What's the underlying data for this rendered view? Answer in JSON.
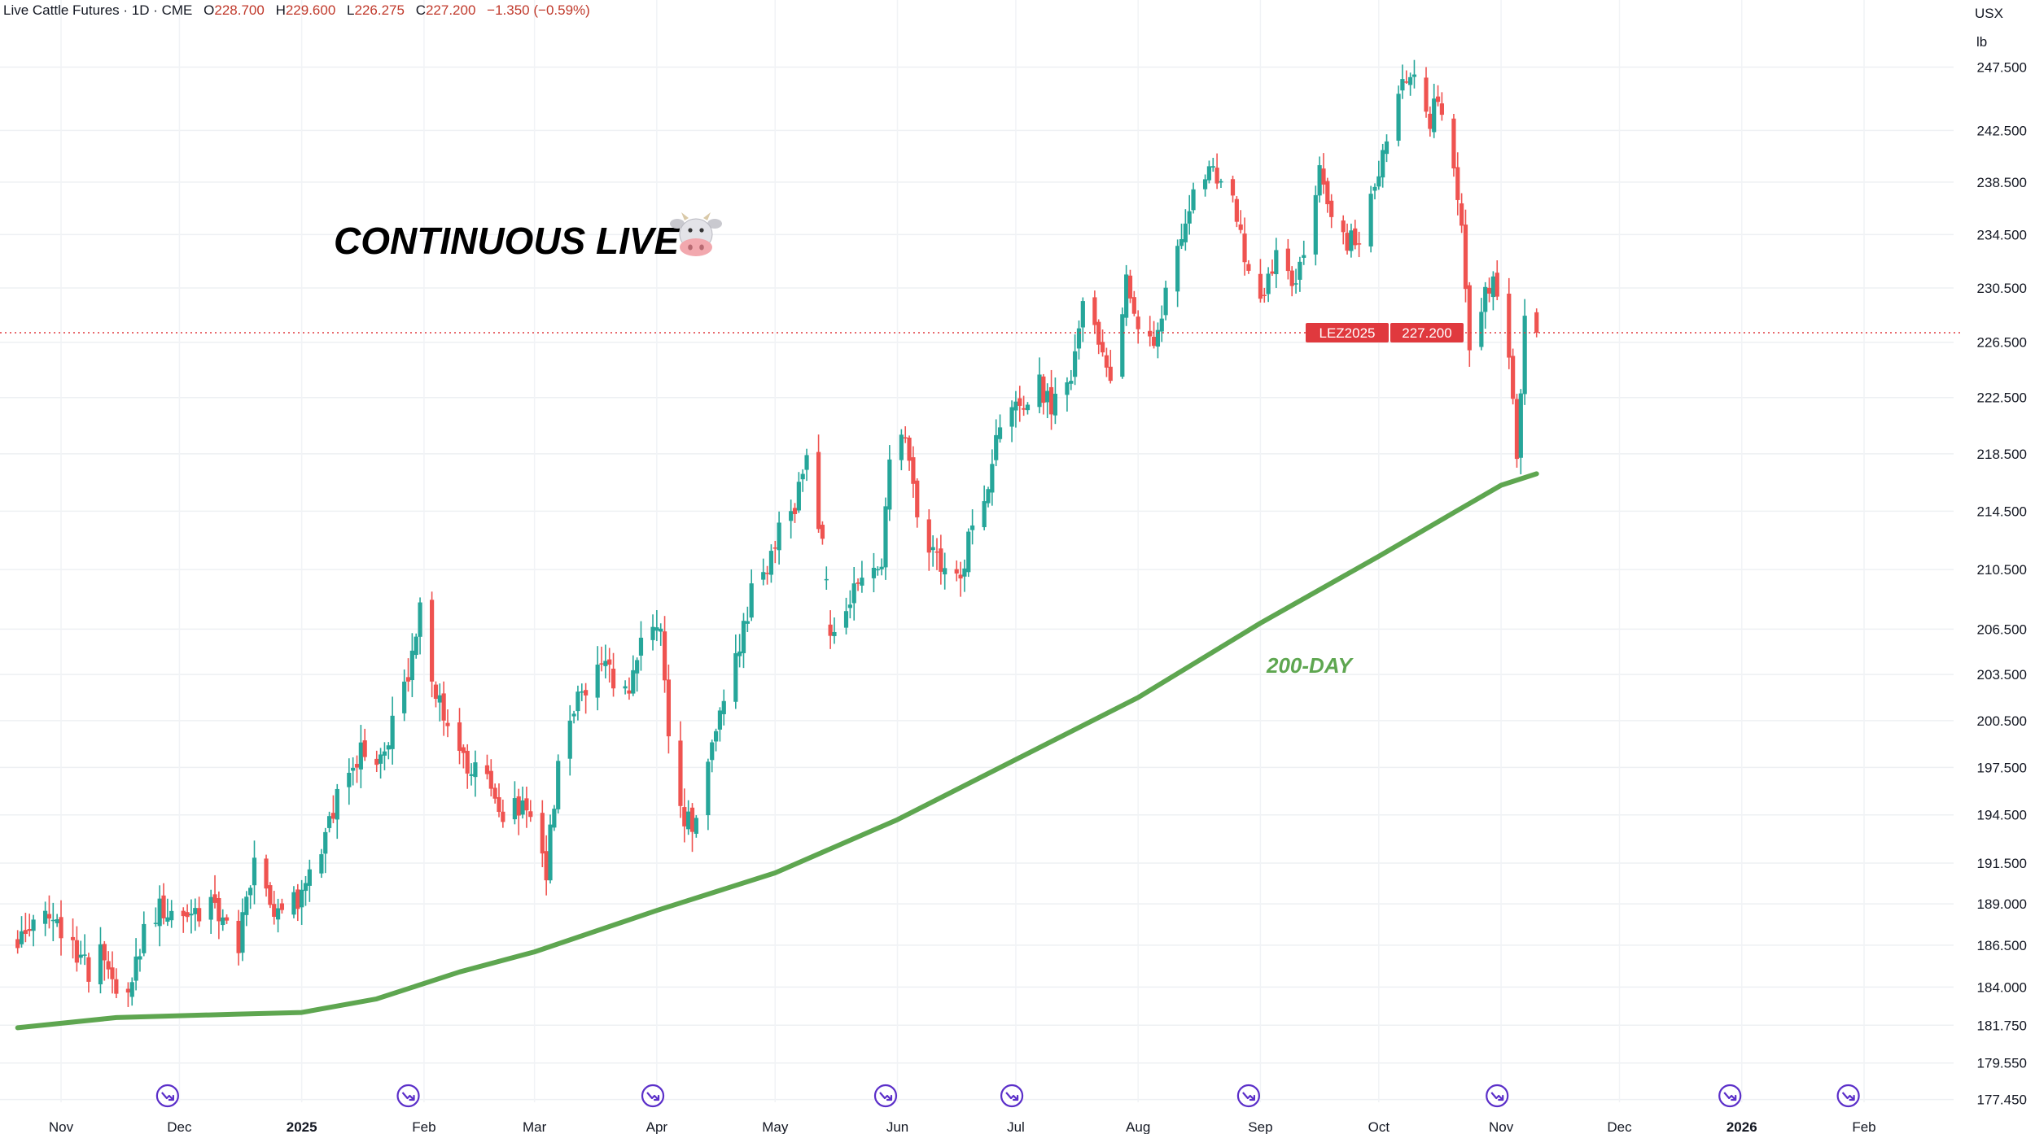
{
  "header": {
    "symbol_line": "Live Cattle Futures · 1D · CME",
    "open_label": "O",
    "open": "228.700",
    "high_label": "H",
    "high": "229.600",
    "low_label": "L",
    "low": "226.275",
    "close_label": "C",
    "close": "227.200",
    "change": "−1.350 (−0.59%)"
  },
  "currency": "USX",
  "unit": "lb",
  "colors": {
    "up": "#26a69a",
    "down": "#ef5350",
    "ma": "#5ea650",
    "price_tag": "#e0393e",
    "event_marker": "#5b2fc9"
  },
  "event_marker_icon": "dividend-event-icon",
  "chart_data": {
    "type": "candlestick",
    "title": "CONTINUOUS LIVE",
    "title_icon": "cow-face-icon",
    "last_price_label": "LEZ2025",
    "last_price": 227.2,
    "ylim": [
      177.2,
      251.0
    ],
    "y_ticks": [
      "177.450",
      "179.550",
      "181.750",
      "184.000",
      "186.500",
      "189.000",
      "191.500",
      "194.500",
      "197.500",
      "200.500",
      "203.500",
      "206.500",
      "210.500",
      "214.500",
      "218.500",
      "222.500",
      "226.500",
      "230.500",
      "234.500",
      "238.500",
      "242.500",
      "247.500"
    ],
    "x_ticks": [
      {
        "label": "Nov",
        "date": "2024-11-01"
      },
      {
        "label": "Dec",
        "date": "2024-12-01"
      },
      {
        "label": "2025",
        "date": "2025-01-01",
        "bold": true
      },
      {
        "label": "Feb",
        "date": "2025-02-01"
      },
      {
        "label": "Mar",
        "date": "2025-03-01"
      },
      {
        "label": "Apr",
        "date": "2025-04-01"
      },
      {
        "label": "May",
        "date": "2025-05-01"
      },
      {
        "label": "Jun",
        "date": "2025-06-01"
      },
      {
        "label": "Jul",
        "date": "2025-07-01"
      },
      {
        "label": "Aug",
        "date": "2025-08-01"
      },
      {
        "label": "Sep",
        "date": "2025-09-01"
      },
      {
        "label": "Oct",
        "date": "2025-10-01"
      },
      {
        "label": "Nov",
        "date": "2025-11-01"
      },
      {
        "label": "Dec",
        "date": "2025-12-01"
      },
      {
        "label": "2026",
        "date": "2026-01-01",
        "bold": true
      },
      {
        "label": "Feb",
        "date": "2026-02-01"
      }
    ],
    "event_dates": [
      "2024-11-28",
      "2025-01-28",
      "2025-03-31",
      "2025-05-29",
      "2025-06-30",
      "2025-08-29",
      "2025-10-31",
      "2025-12-29",
      "2026-01-28"
    ],
    "price_path": [
      {
        "date": "2024-10-21",
        "value": 186.8
      },
      {
        "date": "2024-10-28",
        "value": 189.0
      },
      {
        "date": "2024-11-04",
        "value": 186.3
      },
      {
        "date": "2024-11-08",
        "value": 184.8
      },
      {
        "date": "2024-11-11",
        "value": 185.9
      },
      {
        "date": "2024-11-14",
        "value": 184.0
      },
      {
        "date": "2024-11-18",
        "value": 183.5
      },
      {
        "date": "2024-11-22",
        "value": 187.0
      },
      {
        "date": "2024-11-26",
        "value": 188.9
      },
      {
        "date": "2024-12-03",
        "value": 188.5
      },
      {
        "date": "2024-12-10",
        "value": 188.9
      },
      {
        "date": "2024-12-16",
        "value": 186.5
      },
      {
        "date": "2024-12-20",
        "value": 191.5
      },
      {
        "date": "2024-12-26",
        "value": 188.0
      },
      {
        "date": "2024-12-31",
        "value": 189.3
      },
      {
        "date": "2025-01-03",
        "value": 191.3
      },
      {
        "date": "2025-01-08",
        "value": 193.8
      },
      {
        "date": "2025-01-13",
        "value": 197.8
      },
      {
        "date": "2025-01-17",
        "value": 198.5
      },
      {
        "date": "2025-01-22",
        "value": 198.3
      },
      {
        "date": "2025-01-28",
        "value": 203.5
      },
      {
        "date": "2025-01-31",
        "value": 207.5
      },
      {
        "date": "2025-02-04",
        "value": 202.5
      },
      {
        "date": "2025-02-07",
        "value": 199.5
      },
      {
        "date": "2025-02-12",
        "value": 197.8
      },
      {
        "date": "2025-02-18",
        "value": 196.5
      },
      {
        "date": "2025-02-21",
        "value": 194.5
      },
      {
        "date": "2025-02-25",
        "value": 195.2
      },
      {
        "date": "2025-02-28",
        "value": 193.8
      },
      {
        "date": "2025-03-04",
        "value": 191.0
      },
      {
        "date": "2025-03-07",
        "value": 197.5
      },
      {
        "date": "2025-03-11",
        "value": 201.5
      },
      {
        "date": "2025-03-14",
        "value": 202.5
      },
      {
        "date": "2025-03-18",
        "value": 205.0
      },
      {
        "date": "2025-03-21",
        "value": 203.0
      },
      {
        "date": "2025-03-25",
        "value": 202.3
      },
      {
        "date": "2025-03-28",
        "value": 205.5
      },
      {
        "date": "2025-04-02",
        "value": 207.0
      },
      {
        "date": "2025-04-04",
        "value": 199.0
      },
      {
        "date": "2025-04-08",
        "value": 194.5
      },
      {
        "date": "2025-04-10",
        "value": 193.5
      },
      {
        "date": "2025-04-14",
        "value": 197.5
      },
      {
        "date": "2025-04-17",
        "value": 201.5
      },
      {
        "date": "2025-04-22",
        "value": 205.2
      },
      {
        "date": "2025-04-25",
        "value": 209.0
      },
      {
        "date": "2025-04-29",
        "value": 210.5
      },
      {
        "date": "2025-05-02",
        "value": 213.0
      },
      {
        "date": "2025-05-06",
        "value": 215.0
      },
      {
        "date": "2025-05-09",
        "value": 217.8
      },
      {
        "date": "2025-05-13",
        "value": 212.5
      },
      {
        "date": "2025-05-15",
        "value": 206.5
      },
      {
        "date": "2025-05-19",
        "value": 208.0
      },
      {
        "date": "2025-05-23",
        "value": 210.5
      },
      {
        "date": "2025-05-28",
        "value": 211.0
      },
      {
        "date": "2025-05-30",
        "value": 218.5
      },
      {
        "date": "2025-06-03",
        "value": 219.3
      },
      {
        "date": "2025-06-06",
        "value": 214.5
      },
      {
        "date": "2025-06-10",
        "value": 211.5
      },
      {
        "date": "2025-06-13",
        "value": 210.5
      },
      {
        "date": "2025-06-17",
        "value": 210.0
      },
      {
        "date": "2025-06-20",
        "value": 214.0
      },
      {
        "date": "2025-06-24",
        "value": 216.5
      },
      {
        "date": "2025-06-27",
        "value": 220.3
      },
      {
        "date": "2025-07-01",
        "value": 221.5
      },
      {
        "date": "2025-07-07",
        "value": 223.6
      },
      {
        "date": "2025-07-10",
        "value": 221.5
      },
      {
        "date": "2025-07-15",
        "value": 224.0
      },
      {
        "date": "2025-07-18",
        "value": 229.5
      },
      {
        "date": "2025-07-22",
        "value": 226.5
      },
      {
        "date": "2025-07-25",
        "value": 223.0
      },
      {
        "date": "2025-07-29",
        "value": 231.3
      },
      {
        "date": "2025-08-01",
        "value": 228.0
      },
      {
        "date": "2025-08-05",
        "value": 226.0
      },
      {
        "date": "2025-08-08",
        "value": 230.5
      },
      {
        "date": "2025-08-12",
        "value": 234.5
      },
      {
        "date": "2025-08-15",
        "value": 238.3
      },
      {
        "date": "2025-08-20",
        "value": 239.5
      },
      {
        "date": "2025-08-25",
        "value": 237.5
      },
      {
        "date": "2025-08-28",
        "value": 233.0
      },
      {
        "date": "2025-09-02",
        "value": 229.5
      },
      {
        "date": "2025-09-05",
        "value": 233.5
      },
      {
        "date": "2025-09-09",
        "value": 230.5
      },
      {
        "date": "2025-09-12",
        "value": 232.5
      },
      {
        "date": "2025-09-16",
        "value": 239.5
      },
      {
        "date": "2025-09-19",
        "value": 236.0
      },
      {
        "date": "2025-09-23",
        "value": 234.0
      },
      {
        "date": "2025-09-26",
        "value": 234.5
      },
      {
        "date": "2025-09-30",
        "value": 238.0
      },
      {
        "date": "2025-10-03",
        "value": 241.5
      },
      {
        "date": "2025-10-07",
        "value": 246.0
      },
      {
        "date": "2025-10-10",
        "value": 247.6
      },
      {
        "date": "2025-10-14",
        "value": 243.0
      },
      {
        "date": "2025-10-16",
        "value": 245.5
      },
      {
        "date": "2025-10-20",
        "value": 240.0
      },
      {
        "date": "2025-10-22",
        "value": 234.5
      },
      {
        "date": "2025-10-24",
        "value": 226.5
      },
      {
        "date": "2025-10-28",
        "value": 230.0
      },
      {
        "date": "2025-10-30",
        "value": 231.5
      },
      {
        "date": "2025-11-03",
        "value": 226.0
      },
      {
        "date": "2025-11-05",
        "value": 218.5
      },
      {
        "date": "2025-11-07",
        "value": 228.5
      },
      {
        "date": "2025-11-10",
        "value": 227.2
      }
    ],
    "moving_average": {
      "name": "200-DAY",
      "points": [
        {
          "date": "2024-10-21",
          "value": 181.6
        },
        {
          "date": "2024-11-15",
          "value": 182.2
        },
        {
          "date": "2024-12-15",
          "value": 182.4
        },
        {
          "date": "2025-01-01",
          "value": 182.5
        },
        {
          "date": "2025-01-20",
          "value": 183.3
        },
        {
          "date": "2025-02-10",
          "value": 184.9
        },
        {
          "date": "2025-03-01",
          "value": 186.1
        },
        {
          "date": "2025-04-01",
          "value": 188.6
        },
        {
          "date": "2025-05-01",
          "value": 190.9
        },
        {
          "date": "2025-06-01",
          "value": 194.2
        },
        {
          "date": "2025-07-01",
          "value": 198.0
        },
        {
          "date": "2025-08-01",
          "value": 202.0
        },
        {
          "date": "2025-09-01",
          "value": 206.9
        },
        {
          "date": "2025-10-01",
          "value": 211.4
        },
        {
          "date": "2025-10-20",
          "value": 214.4
        },
        {
          "date": "2025-11-01",
          "value": 216.3
        },
        {
          "date": "2025-11-10",
          "value": 217.1
        }
      ]
    }
  }
}
